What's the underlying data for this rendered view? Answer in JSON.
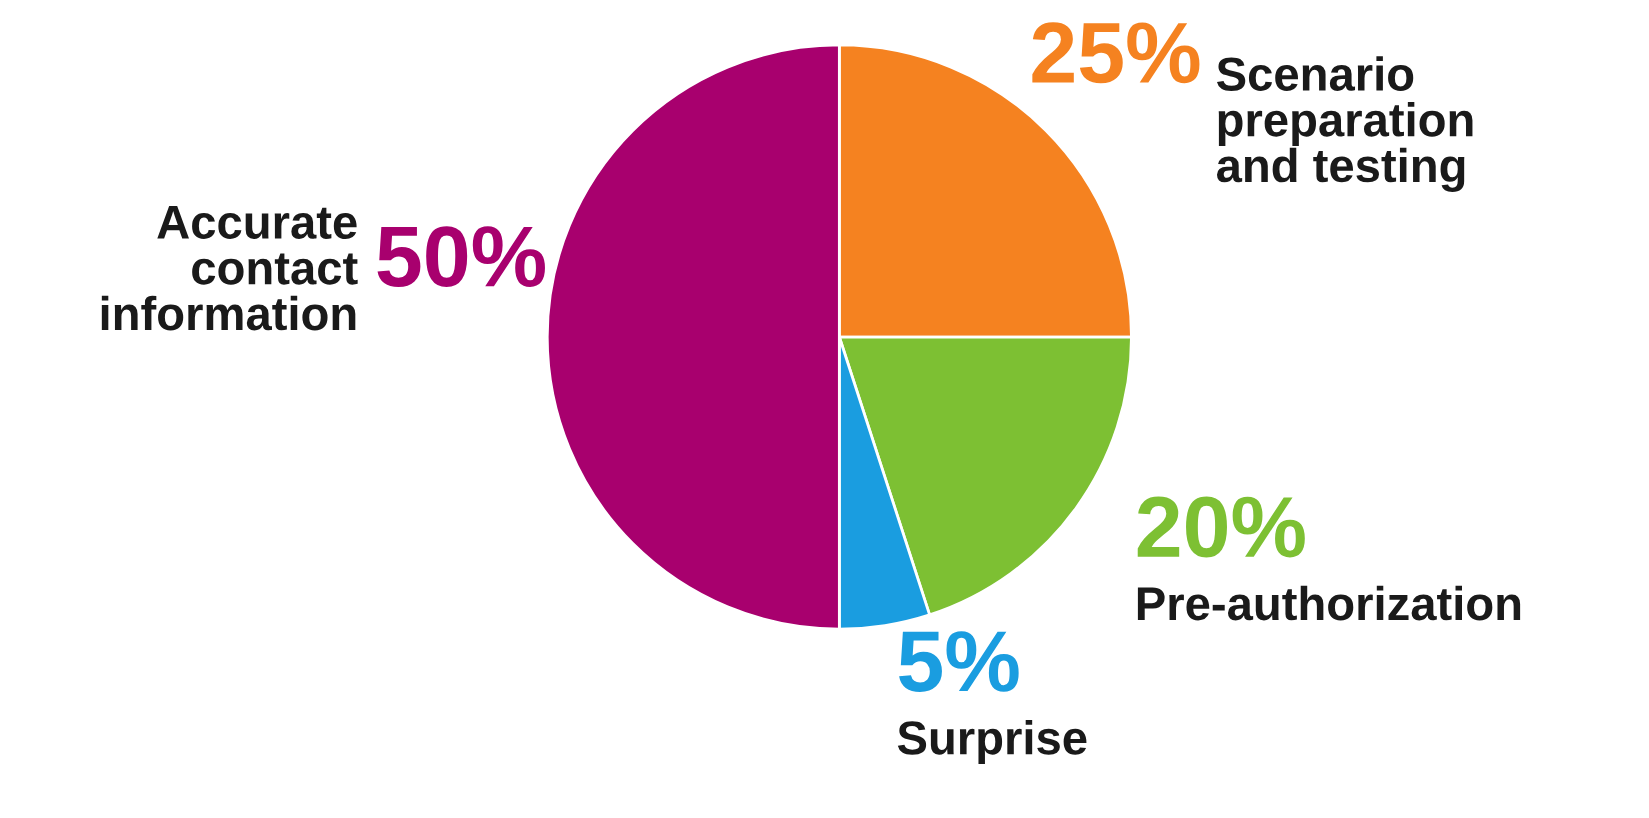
{
  "chart_data": {
    "type": "pie",
    "categories": [
      "Scenario\npreparation\nand testing",
      "Pre-authorization",
      "Surprise",
      "Accurate\ncontact\ninformation"
    ],
    "values": [
      25,
      20,
      5,
      50
    ],
    "value_labels": [
      "25%",
      "20%",
      "5%",
      "50%"
    ],
    "colors": [
      "#f58220",
      "#7dc033",
      "#1a9de0",
      "#a8006e"
    ],
    "legend": false
  }
}
